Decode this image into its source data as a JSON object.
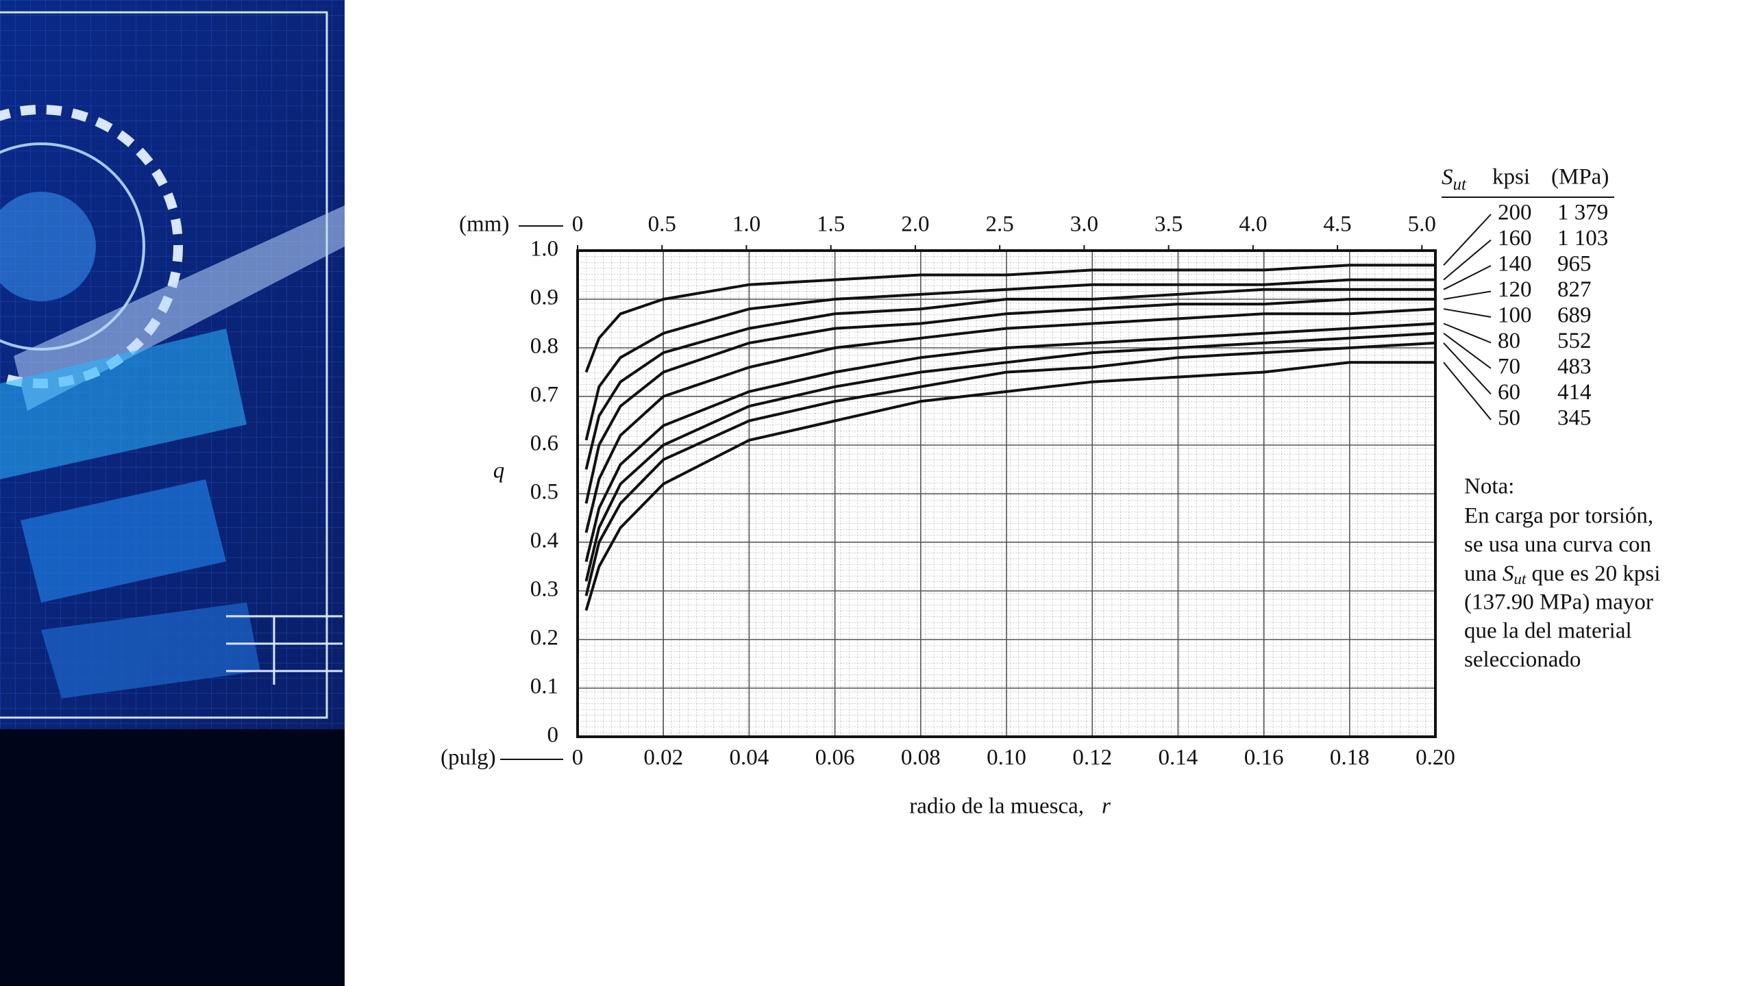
{
  "chart_data": {
    "type": "line",
    "x": [
      0.002,
      0.005,
      0.01,
      0.02,
      0.04,
      0.06,
      0.08,
      0.1,
      0.12,
      0.14,
      0.16,
      0.18,
      0.2
    ],
    "xlim": [
      0,
      0.2
    ],
    "xticks": [
      0,
      0.02,
      0.04,
      0.06,
      0.08,
      {
        "value": 0.1,
        "label": "0.10"
      },
      0.12,
      0.14,
      0.16,
      0.18,
      {
        "value": 0.2,
        "label": "0.20"
      }
    ],
    "x2lim": [
      0,
      5.08
    ],
    "x2ticks": [
      0,
      0.5,
      {
        "value": 1,
        "label": "1.0"
      },
      1.5,
      {
        "value": 2,
        "label": "2.0"
      },
      2.5,
      {
        "value": 3,
        "label": "3.0"
      },
      3.5,
      {
        "value": 4,
        "label": "4.0"
      },
      4.5,
      {
        "value": 5,
        "label": "5.0"
      }
    ],
    "x_unit_label": "(pulg)",
    "x2_unit_label": "(mm)",
    "xlabel": "radio de la muesca,",
    "xlabel_symbol": "r",
    "ylabel": "q",
    "ylim": [
      0,
      1
    ],
    "yticks": [
      0,
      0.1,
      0.2,
      0.3,
      0.4,
      0.5,
      0.6,
      0.7,
      0.8,
      0.9,
      {
        "value": 1,
        "label": "1.0"
      }
    ],
    "grid": true,
    "legend": {
      "symbol": "S",
      "subscript": "ut",
      "kpsi": "kpsi",
      "mpa": "(MPa)"
    },
    "series": [
      {
        "name": "200",
        "mpa": "1 379",
        "color": "#111111",
        "values": [
          0.75,
          0.82,
          0.87,
          0.9,
          0.93,
          0.94,
          0.95,
          0.95,
          0.96,
          0.96,
          0.96,
          0.97,
          0.97
        ]
      },
      {
        "name": "160",
        "mpa": "1 103",
        "color": "#111111",
        "values": [
          0.61,
          0.72,
          0.78,
          0.83,
          0.88,
          0.9,
          0.91,
          0.92,
          0.93,
          0.93,
          0.93,
          0.94,
          0.94
        ]
      },
      {
        "name": "140",
        "mpa": "965",
        "color": "#111111",
        "values": [
          0.55,
          0.66,
          0.73,
          0.79,
          0.84,
          0.87,
          0.88,
          0.9,
          0.9,
          0.91,
          0.92,
          0.92,
          0.92
        ]
      },
      {
        "name": "120",
        "mpa": "827",
        "color": "#111111",
        "values": [
          0.48,
          0.6,
          0.68,
          0.75,
          0.81,
          0.84,
          0.85,
          0.87,
          0.88,
          0.89,
          0.89,
          0.9,
          0.9
        ]
      },
      {
        "name": "100",
        "mpa": "689",
        "color": "#111111",
        "values": [
          0.42,
          0.53,
          0.62,
          0.7,
          0.76,
          0.8,
          0.82,
          0.84,
          0.85,
          0.86,
          0.87,
          0.87,
          0.88
        ]
      },
      {
        "name": "80",
        "mpa": "552",
        "color": "#111111",
        "values": [
          0.36,
          0.47,
          0.56,
          0.64,
          0.71,
          0.75,
          0.78,
          0.8,
          0.81,
          0.82,
          0.83,
          0.84,
          0.85
        ]
      },
      {
        "name": "70",
        "mpa": "483",
        "color": "#111111",
        "values": [
          0.32,
          0.43,
          0.52,
          0.6,
          0.68,
          0.72,
          0.75,
          0.77,
          0.79,
          0.8,
          0.81,
          0.82,
          0.83
        ]
      },
      {
        "name": "60",
        "mpa": "414",
        "color": "#111111",
        "values": [
          0.29,
          0.4,
          0.48,
          0.57,
          0.65,
          0.69,
          0.72,
          0.75,
          0.76,
          0.78,
          0.79,
          0.8,
          0.81
        ]
      },
      {
        "name": "50",
        "mpa": "345",
        "color": "#111111",
        "values": [
          0.26,
          0.35,
          0.43,
          0.52,
          0.61,
          0.65,
          0.69,
          0.71,
          0.73,
          0.74,
          0.75,
          0.77,
          0.77
        ]
      }
    ],
    "note": {
      "title": "Nota:",
      "lines": [
        "En carga por torsión,",
        "se usa una curva con",
        {
          "before": "una ",
          "symbol": "S",
          "subscript": "ut",
          "after": " que es 20 kpsi"
        },
        "(137.90 MPa) mayor",
        "que la del material",
        "seleccionado"
      ]
    }
  }
}
